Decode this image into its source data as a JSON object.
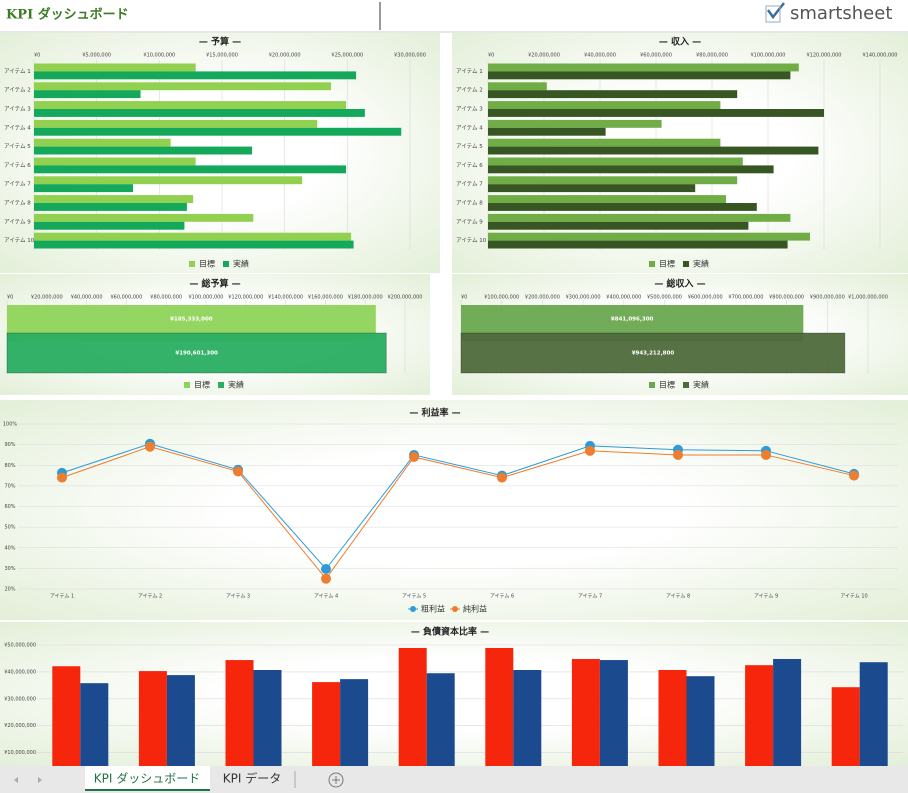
{
  "header": {
    "title": "KPI ダッシュボード",
    "logo": "smartsheet"
  },
  "tabs": [
    "KPI ダッシュボード",
    "KPI データ"
  ],
  "chart_data": [
    {
      "type": "hbar",
      "title": "— 予算 —",
      "categories": [
        "アイテム 1",
        "アイテム 2",
        "アイテム 3",
        "アイテム 4",
        "アイテム 5",
        "アイテム 6",
        "アイテム 7",
        "アイテム 8",
        "アイテム 9",
        "アイテム 10"
      ],
      "series": [
        {
          "name": "目標",
          "color": "#92d050",
          "values": [
            12900000,
            23700000,
            24900000,
            22600000,
            10900000,
            12900000,
            21400000,
            12700000,
            17500000,
            25300000
          ]
        },
        {
          "name": "実績",
          "color": "#14a85a",
          "values": [
            25700000,
            8500000,
            26400000,
            29300000,
            17400000,
            24900000,
            7900000,
            12200000,
            12000000,
            25500000
          ]
        }
      ],
      "xlim": [
        0,
        30000000
      ],
      "xticks": [
        {
          "value": 0,
          "label": "¥0"
        },
        {
          "value": 5000000,
          "label": "¥5,000,000"
        },
        {
          "value": 10000000,
          "label": "¥10,000,000"
        },
        {
          "value": 15000000,
          "label": "¥15,000,000"
        },
        {
          "value": 20000000,
          "label": "¥20,000,000"
        },
        {
          "value": 25000000,
          "label": "¥25,000,000"
        },
        {
          "value": 30000000,
          "label": "¥30,000,000"
        }
      ],
      "grid": true
    },
    {
      "type": "hbar",
      "title": "— 収入 —",
      "categories": [
        "アイテム 1",
        "アイテム 2",
        "アイテム 3",
        "アイテム 4",
        "アイテム 5",
        "アイテム 6",
        "アイテム 7",
        "アイテム 8",
        "アイテム 9",
        "アイテム 10"
      ],
      "series": [
        {
          "name": "目標",
          "color": "#70ad47",
          "values": [
            111000000,
            21000000,
            83000000,
            62000000,
            83000000,
            91000000,
            89000000,
            85000000,
            108000000,
            115000000
          ]
        },
        {
          "name": "実績",
          "color": "#375623",
          "values": [
            108000000,
            89000000,
            120000000,
            42000000,
            118000000,
            102000000,
            74000000,
            96000000,
            93000000,
            107000000
          ]
        }
      ],
      "xlim": [
        0,
        140000000
      ],
      "xticks": [
        {
          "value": 0,
          "label": "¥0"
        },
        {
          "value": 20000000,
          "label": "¥20,000,000"
        },
        {
          "value": 40000000,
          "label": "¥40,000,000"
        },
        {
          "value": 60000000,
          "label": "¥60,000,000"
        },
        {
          "value": 80000000,
          "label": "¥80,000,000"
        },
        {
          "value": 100000000,
          "label": "¥100,000,000"
        },
        {
          "value": 120000000,
          "label": "¥120,000,000"
        },
        {
          "value": 140000000,
          "label": "¥140,000,000"
        }
      ],
      "grid": true
    },
    {
      "type": "hbar",
      "title": "— 総予算 —",
      "series": [
        {
          "name": "目標",
          "color": "#8fd45a",
          "values": [
            185333000
          ],
          "value_labels": [
            "¥185,333,000"
          ]
        },
        {
          "name": "実績",
          "color": "#2aae62",
          "values": [
            190601300
          ],
          "value_labels": [
            "¥190,601,300"
          ]
        }
      ],
      "xlim": [
        0,
        200000000
      ],
      "xticks": [
        {
          "value": 0,
          "label": "¥0"
        },
        {
          "value": 20000000,
          "label": "¥20,000,000"
        },
        {
          "value": 40000000,
          "label": "¥40,000,000"
        },
        {
          "value": 60000000,
          "label": "¥60,000,000"
        },
        {
          "value": 80000000,
          "label": "¥80,000,000"
        },
        {
          "value": 100000000,
          "label": "¥100,000,000"
        },
        {
          "value": 120000000,
          "label": "¥120,000,000"
        },
        {
          "value": 140000000,
          "label": "¥140,000,000"
        },
        {
          "value": 160000000,
          "label": "¥160,000,000"
        },
        {
          "value": 180000000,
          "label": "¥180,000,000"
        },
        {
          "value": 200000000,
          "label": "¥200,000,000"
        }
      ],
      "grid": true
    },
    {
      "type": "hbar",
      "title": "— 総収入 —",
      "series": [
        {
          "name": "目標",
          "color": "#6aa84f",
          "values": [
            841096300
          ],
          "value_labels": [
            "¥841,096,300"
          ]
        },
        {
          "name": "実績",
          "color": "#4f6b3c",
          "values": [
            943212800
          ],
          "value_labels": [
            "¥943,212,800"
          ]
        }
      ],
      "xlim": [
        0,
        1000000000
      ],
      "xticks": [
        {
          "value": 0,
          "label": "¥0"
        },
        {
          "value": 100000000,
          "label": "¥100,000,000"
        },
        {
          "value": 200000000,
          "label": "¥200,000,000"
        },
        {
          "value": 300000000,
          "label": "¥300,000,000"
        },
        {
          "value": 400000000,
          "label": "¥400,000,000"
        },
        {
          "value": 500000000,
          "label": "¥500,000,000"
        },
        {
          "value": 600000000,
          "label": "¥600,000,000"
        },
        {
          "value": 700000000,
          "label": "¥700,000,000"
        },
        {
          "value": 800000000,
          "label": "¥800,000,000"
        },
        {
          "value": 900000000,
          "label": "¥900,000,000"
        },
        {
          "value": 1000000000,
          "label": "¥1,000,000,000"
        }
      ],
      "grid": true
    },
    {
      "type": "line",
      "title": "— 利益率 —",
      "categories": [
        "アイテム 1",
        "アイテム 2",
        "アイテム 3",
        "アイテム 4",
        "アイテム 5",
        "アイテム 6",
        "アイテム 7",
        "アイテム 8",
        "アイテム 9",
        "アイテム 10"
      ],
      "series": [
        {
          "name": "粗利益",
          "color": "#2e9bd6",
          "values": [
            76.3,
            90.4,
            77.8,
            29.7,
            85,
            75,
            89.4,
            87.5,
            87,
            75.8
          ]
        },
        {
          "name": "純利益",
          "color": "#ed7d31",
          "values": [
            74,
            89,
            77,
            25,
            84,
            74,
            87,
            85,
            85,
            75
          ]
        }
      ],
      "ylim": [
        20,
        100
      ],
      "yticks": [
        {
          "value": 20,
          "label": "20%"
        },
        {
          "value": 30,
          "label": "30%"
        },
        {
          "value": 40,
          "label": "40%"
        },
        {
          "value": 50,
          "label": "50%"
        },
        {
          "value": 60,
          "label": "60%"
        },
        {
          "value": 70,
          "label": "70%"
        },
        {
          "value": 80,
          "label": "80%"
        },
        {
          "value": 90,
          "label": "90%"
        },
        {
          "value": 100,
          "label": "100%"
        }
      ],
      "grid": true
    },
    {
      "type": "bar",
      "title": "— 負債資本比率 —",
      "series": [
        {
          "color": "#f5260c",
          "values": [
            42100000,
            40300000,
            44400000,
            36200000,
            48900000,
            48900000,
            44800000,
            40700000,
            42500000,
            34300000
          ]
        },
        {
          "color": "#1b4a8f",
          "values": [
            35800000,
            38800000,
            40700000,
            37300000,
            39500000,
            40700000,
            44400000,
            38400000,
            44800000,
            43600000
          ]
        }
      ],
      "ylim": [
        5000000,
        50000000
      ],
      "yticks": [
        {
          "value": 10000000,
          "label": "¥10,000,000"
        },
        {
          "value": 20000000,
          "label": "¥20,000,000"
        },
        {
          "value": 30000000,
          "label": "¥30,000,000"
        },
        {
          "value": 40000000,
          "label": "¥40,000,000"
        },
        {
          "value": 50000000,
          "label": "¥50,000,000"
        }
      ],
      "grid": true
    }
  ]
}
